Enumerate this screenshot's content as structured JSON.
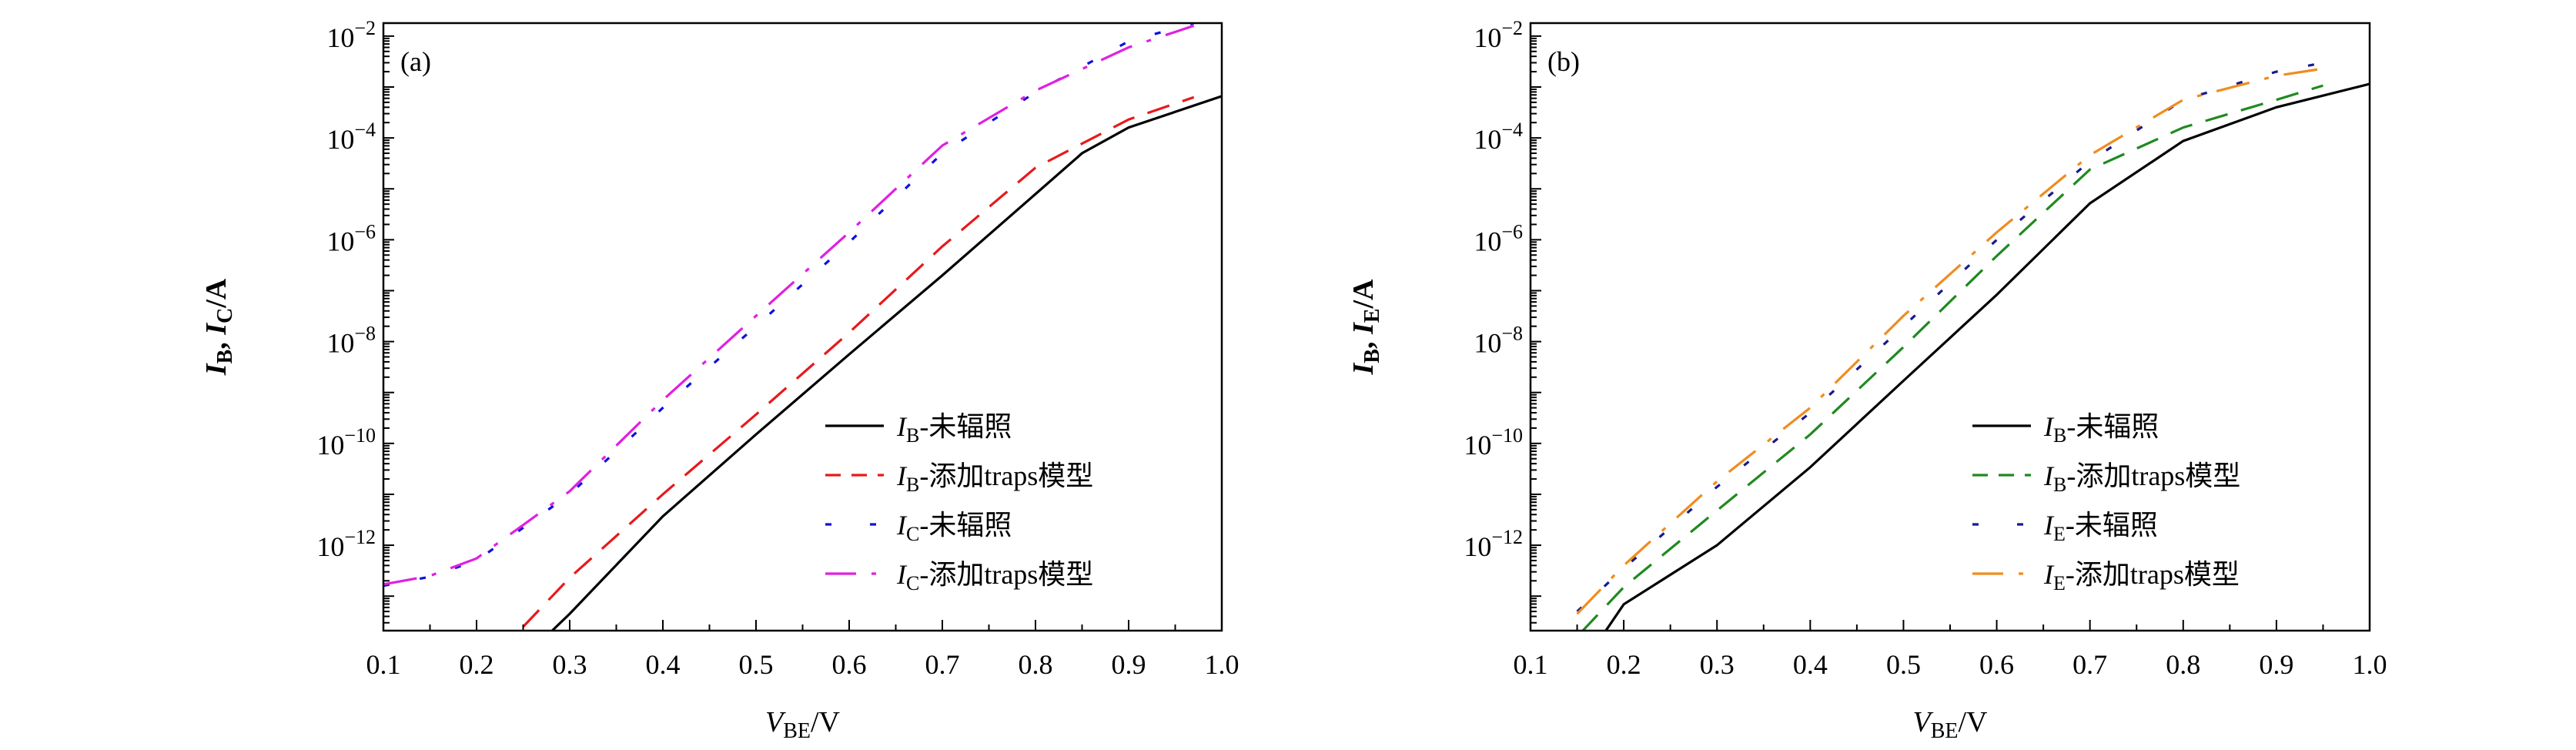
{
  "chart_data": [
    {
      "type": "line",
      "panel_label": "(a)",
      "xlabel": {
        "var": "V",
        "sub": "BE",
        "unit": "/V"
      },
      "ylabel": {
        "v1": "I",
        "s1": "B",
        "sep": ", ",
        "v2": "I",
        "s2": "C",
        "unit": "/A"
      },
      "xlim": [
        0.1,
        1.0
      ],
      "ylim": [
        2.1e-14,
        0.018
      ],
      "yscale": "log",
      "grid": false,
      "legend_position": "bottom-right",
      "xtick_labels": [
        "0.1",
        "0.2",
        "0.3",
        "0.4",
        "0.5",
        "0.6",
        "0.7",
        "0.8",
        "0.9",
        "1.0"
      ],
      "ytick_labels": [
        {
          "value": 0.01,
          "base": "10",
          "exp": "−2"
        },
        {
          "value": 0.0001,
          "base": "10",
          "exp": "−4"
        },
        {
          "value": 1e-06,
          "base": "10",
          "exp": "−6"
        },
        {
          "value": 1e-08,
          "base": "10",
          "exp": "−8"
        },
        {
          "value": 1e-10,
          "base": "10",
          "exp": "−10"
        },
        {
          "value": 1e-12,
          "base": "10",
          "exp": "−12"
        }
      ],
      "series": [
        {
          "name": {
            "var": "I",
            "sub": "B",
            "text": "-未辐照"
          },
          "color": "#000000",
          "style": "solid",
          "x": [
            0.28,
            0.3,
            0.4,
            0.5,
            0.6,
            0.7,
            0.8,
            0.85,
            0.9,
            1.0
          ],
          "y": [
            2e-14,
            4.5e-14,
            3.7e-12,
            1.5e-10,
            5.6e-09,
            2e-07,
            7.9e-06,
            5e-05,
            0.00016,
            0.00066
          ]
        },
        {
          "name": {
            "var": "I",
            "sub": "B",
            "text": "-添加traps模型"
          },
          "color": "#e8191c",
          "style": "dashed",
          "x": [
            0.25,
            0.3,
            0.4,
            0.5,
            0.6,
            0.7,
            0.8,
            0.9,
            0.97
          ],
          "y": [
            2.5e-14,
            2.3e-13,
            1e-11,
            3.7e-10,
            1.5e-08,
            7.4e-07,
            2.6e-05,
            0.00023,
            0.00063
          ]
        },
        {
          "name": {
            "var": "I",
            "sub": "C",
            "text": "-未辐照"
          },
          "color": "#1010e0",
          "style": "dotted",
          "x": [
            0.1,
            0.15,
            0.2,
            0.25,
            0.3,
            0.4,
            0.5,
            0.6,
            0.7,
            0.8,
            0.9,
            0.97
          ],
          "y": [
            1.6e-13,
            2.4e-13,
            5e-13,
            2.2e-12,
            1e-11,
            5e-10,
            2e-08,
            8.9e-07,
            5e-05,
            0.00079,
            0.0079,
            0.018
          ]
        },
        {
          "name": {
            "var": "I",
            "sub": "C",
            "text": "-添加traps模型"
          },
          "color": "#e020e0",
          "style": "dashdot",
          "x": [
            0.1,
            0.15,
            0.2,
            0.25,
            0.3,
            0.4,
            0.5,
            0.6,
            0.7,
            0.8,
            0.9,
            0.97
          ],
          "y": [
            1.7e-13,
            2.5e-13,
            5.5e-13,
            2.5e-12,
            1.15e-11,
            7.1e-10,
            3.2e-08,
            1.4e-06,
            7.1e-05,
            0.00085,
            0.006,
            0.016
          ]
        }
      ]
    },
    {
      "type": "line",
      "panel_label": "(b)",
      "xlabel": {
        "var": "V",
        "sub": "BE",
        "unit": "/V"
      },
      "ylabel": {
        "v1": "I",
        "s1": "B",
        "sep": ", ",
        "v2": "I",
        "s2": "E",
        "unit": "/A"
      },
      "xlim": [
        0.1,
        1.0
      ],
      "ylim": [
        2.1e-14,
        0.018
      ],
      "yscale": "log",
      "grid": false,
      "legend_position": "bottom-right",
      "xtick_labels": [
        "0.1",
        "0.2",
        "0.3",
        "0.4",
        "0.5",
        "0.6",
        "0.7",
        "0.8",
        "0.9",
        "1.0"
      ],
      "ytick_labels": [
        {
          "value": 0.01,
          "base": "10",
          "exp": "−2"
        },
        {
          "value": 0.0001,
          "base": "10",
          "exp": "−4"
        },
        {
          "value": 1e-06,
          "base": "10",
          "exp": "−6"
        },
        {
          "value": 1e-08,
          "base": "10",
          "exp": "−8"
        },
        {
          "value": 1e-10,
          "base": "10",
          "exp": "−10"
        },
        {
          "value": 1e-12,
          "base": "10",
          "exp": "−12"
        }
      ],
      "series": [
        {
          "name": {
            "var": "I",
            "sub": "B",
            "text": "-未辐照"
          },
          "color": "#000000",
          "style": "solid",
          "x": [
            0.18,
            0.2,
            0.3,
            0.4,
            0.5,
            0.6,
            0.7,
            0.8,
            0.9,
            1.0
          ],
          "y": [
            2e-14,
            6.9e-14,
            1e-12,
            3.4e-11,
            1.7e-09,
            8.3e-08,
            5.2e-06,
            8.7e-05,
            0.0004,
            0.00115
          ]
        },
        {
          "name": {
            "var": "I",
            "sub": "B",
            "text": "-添加traps模型"
          },
          "color": "#1f8a1f",
          "style": "dashed",
          "x": [
            0.155,
            0.2,
            0.3,
            0.4,
            0.5,
            0.6,
            0.7,
            0.8,
            0.9,
            0.95
          ],
          "y": [
            2e-14,
            1.5e-13,
            4.8e-12,
            1.5e-10,
            7.8e-09,
            4.8e-07,
            2.4e-05,
            0.00016,
            0.00056,
            0.00107
          ]
        },
        {
          "name": {
            "var": "I",
            "sub": "E",
            "text": "-未辐照"
          },
          "color": "#1a1a8c",
          "style": "dotted",
          "x": [
            0.15,
            0.2,
            0.3,
            0.4,
            0.5,
            0.6,
            0.7,
            0.8,
            0.9,
            0.97
          ],
          "y": [
            5e-14,
            3.5e-13,
            1.4e-11,
            4e-10,
            2e-08,
            1e-06,
            3.5e-05,
            0.00056,
            0.002,
            0.0035
          ]
        },
        {
          "name": {
            "var": "I",
            "sub": "E",
            "text": "-添加traps模型"
          },
          "color": "#f08c1e",
          "style": "dashdot",
          "x": [
            0.15,
            0.2,
            0.3,
            0.4,
            0.5,
            0.6,
            0.7,
            0.8,
            0.9,
            0.95
          ],
          "y": [
            4.5e-14,
            4e-13,
            1.8e-11,
            5e-10,
            3.2e-08,
            1.4e-06,
            4.6e-05,
            0.00056,
            0.00166,
            0.0023
          ]
        }
      ]
    }
  ]
}
